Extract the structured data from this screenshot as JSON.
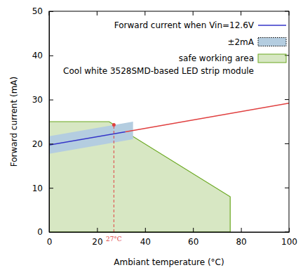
{
  "chart_data": {
    "type": "line",
    "x_label": "Ambiant temperature (°C)",
    "y_label": "Forward current (mA)",
    "xlim": [
      0,
      100
    ],
    "ylim": [
      0,
      50
    ],
    "xticks": [
      0,
      20,
      40,
      60,
      80,
      100
    ],
    "yticks": [
      0,
      10,
      20,
      30,
      40,
      50
    ],
    "grid": false,
    "legend": "top-right",
    "series": [
      {
        "name": "Forward current when Vin=12.6V",
        "type": "line",
        "color": "#3535c8",
        "x": [
          0,
          31.8
        ],
        "values": [
          19.7,
          22.7
        ]
      },
      {
        "name": "±2mA",
        "type": "band",
        "color": "#b4cde0",
        "x": [
          0,
          35
        ],
        "values": [
          19.7,
          23.0
        ],
        "error": [
          2,
          2
        ]
      },
      {
        "name": "safe working area",
        "type": "area",
        "color": "#6aa820",
        "x": [
          0,
          25,
          75.5,
          75.5,
          0
        ],
        "values": [
          25,
          25,
          8,
          0,
          0
        ]
      },
      {
        "type": "line",
        "color": "#e04040",
        "x": [
          31.8,
          100
        ],
        "values": [
          22.7,
          29.2
        ]
      }
    ],
    "annotations": [
      {
        "text": "Cool white 3528SMD-based LED strip module"
      },
      {
        "text": "27°C",
        "x": 27,
        "y": 24.3,
        "color": "#e04040"
      }
    ]
  }
}
